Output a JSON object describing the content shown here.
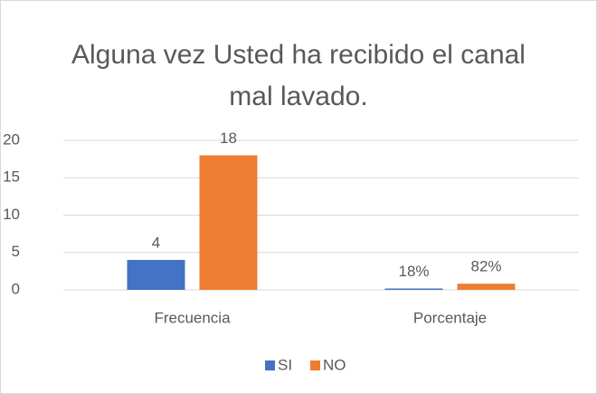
{
  "chart_data": {
    "type": "bar",
    "title": "Alguna vez Usted ha recibido el canal mal lavado.",
    "categories": [
      "Frecuencia",
      "Porcentaje"
    ],
    "series": [
      {
        "name": "SI",
        "color": "#4472c4",
        "values": [
          4,
          0.18
        ],
        "value_labels": [
          "4",
          "18%"
        ]
      },
      {
        "name": "NO",
        "color": "#ed7d31",
        "values": [
          18,
          0.82
        ],
        "value_labels": [
          "18",
          "82%"
        ]
      }
    ],
    "ylim": [
      0,
      20
    ],
    "yticks": [
      0,
      5,
      10,
      15,
      20
    ],
    "grid": true,
    "legend": "bottom"
  }
}
